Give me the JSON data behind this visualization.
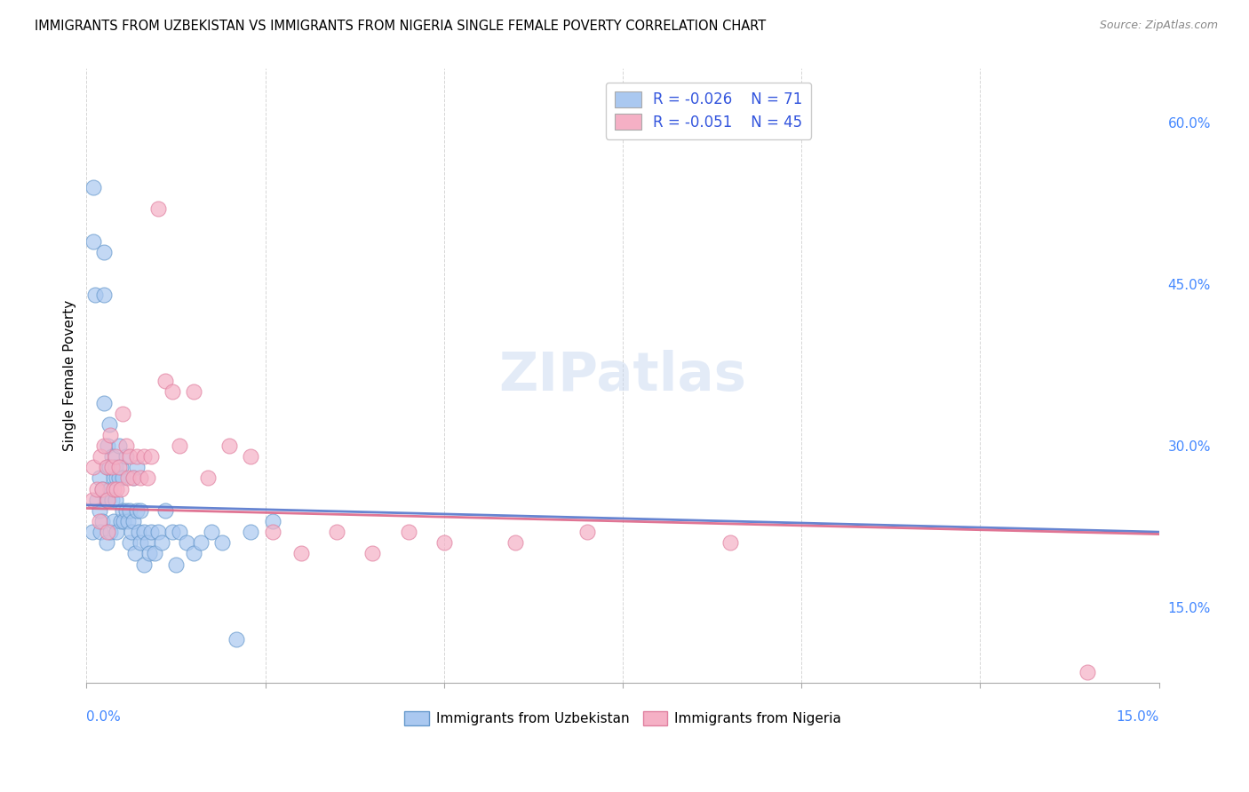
{
  "title": "IMMIGRANTS FROM UZBEKISTAN VS IMMIGRANTS FROM NIGERIA SINGLE FEMALE POVERTY CORRELATION CHART",
  "source": "Source: ZipAtlas.com",
  "ylabel": "Single Female Poverty",
  "right_yticks": [
    "60.0%",
    "45.0%",
    "30.0%",
    "15.0%"
  ],
  "right_ytick_vals": [
    0.6,
    0.45,
    0.3,
    0.15
  ],
  "legend_label1": "Immigrants from Uzbekistan",
  "legend_label2": "Immigrants from Nigeria",
  "R1": "-0.026",
  "N1": "71",
  "R2": "-0.051",
  "N2": "45",
  "color1": "#aac8f0",
  "color2": "#f5b0c5",
  "edge_color1": "#6699cc",
  "edge_color2": "#e080a0",
  "trend_color1": "#5577cc",
  "trend_color2": "#dd6688",
  "watermark": "ZIPatlas",
  "xlim": [
    0.0,
    0.15
  ],
  "ylim": [
    0.08,
    0.65
  ],
  "uzbekistan_x": [
    0.0008,
    0.001,
    0.001,
    0.0012,
    0.0015,
    0.0018,
    0.0018,
    0.002,
    0.0022,
    0.0022,
    0.0025,
    0.0025,
    0.0025,
    0.0028,
    0.0028,
    0.003,
    0.003,
    0.003,
    0.0032,
    0.0032,
    0.0033,
    0.0033,
    0.0035,
    0.0035,
    0.0038,
    0.0038,
    0.004,
    0.004,
    0.0042,
    0.0042,
    0.0045,
    0.0045,
    0.0048,
    0.0048,
    0.005,
    0.005,
    0.0052,
    0.0055,
    0.0055,
    0.0058,
    0.006,
    0.006,
    0.0063,
    0.0065,
    0.0065,
    0.0068,
    0.007,
    0.007,
    0.0073,
    0.0075,
    0.0075,
    0.008,
    0.008,
    0.0085,
    0.0088,
    0.009,
    0.0095,
    0.01,
    0.0105,
    0.011,
    0.012,
    0.0125,
    0.013,
    0.014,
    0.015,
    0.016,
    0.0175,
    0.019,
    0.021,
    0.023,
    0.026
  ],
  "uzbekistan_y": [
    0.22,
    0.54,
    0.49,
    0.44,
    0.25,
    0.27,
    0.24,
    0.22,
    0.26,
    0.23,
    0.48,
    0.44,
    0.34,
    0.25,
    0.21,
    0.3,
    0.28,
    0.25,
    0.32,
    0.28,
    0.26,
    0.22,
    0.29,
    0.25,
    0.27,
    0.23,
    0.28,
    0.25,
    0.27,
    0.22,
    0.3,
    0.27,
    0.28,
    0.23,
    0.27,
    0.24,
    0.23,
    0.29,
    0.24,
    0.23,
    0.24,
    0.21,
    0.22,
    0.27,
    0.23,
    0.2,
    0.28,
    0.24,
    0.22,
    0.24,
    0.21,
    0.22,
    0.19,
    0.21,
    0.2,
    0.22,
    0.2,
    0.22,
    0.21,
    0.24,
    0.22,
    0.19,
    0.22,
    0.21,
    0.2,
    0.21,
    0.22,
    0.21,
    0.12,
    0.22,
    0.23
  ],
  "nigeria_x": [
    0.0008,
    0.001,
    0.0015,
    0.0018,
    0.002,
    0.0022,
    0.0025,
    0.0028,
    0.003,
    0.003,
    0.0033,
    0.0035,
    0.0038,
    0.004,
    0.0042,
    0.0045,
    0.0048,
    0.005,
    0.0055,
    0.0058,
    0.006,
    0.0065,
    0.007,
    0.0075,
    0.008,
    0.0085,
    0.009,
    0.01,
    0.011,
    0.012,
    0.013,
    0.015,
    0.017,
    0.02,
    0.023,
    0.026,
    0.03,
    0.035,
    0.04,
    0.045,
    0.05,
    0.06,
    0.07,
    0.09,
    0.14
  ],
  "nigeria_y": [
    0.25,
    0.28,
    0.26,
    0.23,
    0.29,
    0.26,
    0.3,
    0.28,
    0.25,
    0.22,
    0.31,
    0.28,
    0.26,
    0.29,
    0.26,
    0.28,
    0.26,
    0.33,
    0.3,
    0.27,
    0.29,
    0.27,
    0.29,
    0.27,
    0.29,
    0.27,
    0.29,
    0.52,
    0.36,
    0.35,
    0.3,
    0.35,
    0.27,
    0.3,
    0.29,
    0.22,
    0.2,
    0.22,
    0.2,
    0.22,
    0.21,
    0.21,
    0.22,
    0.21,
    0.09
  ]
}
